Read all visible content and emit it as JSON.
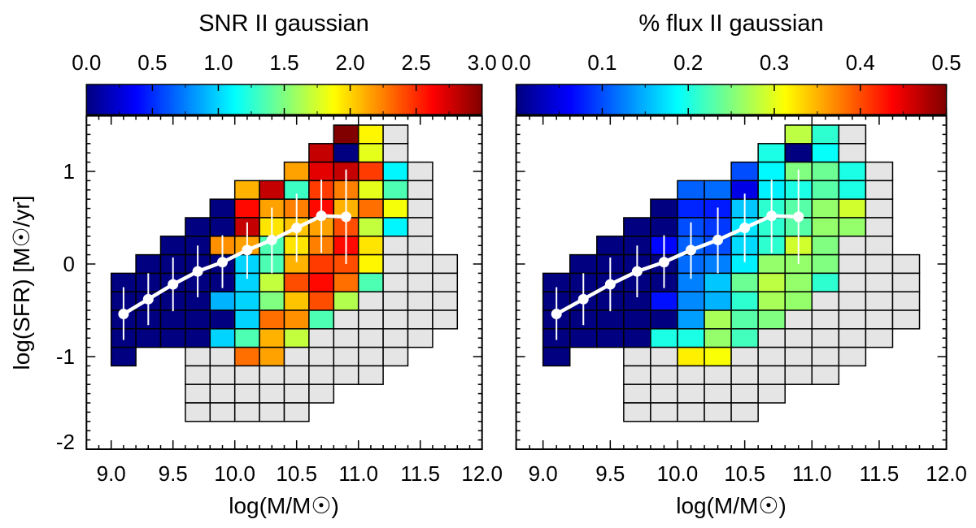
{
  "chart_data": [
    {
      "type": "heatmap",
      "title": "SNR II gaussian",
      "xlabel": "log(M/M☉)",
      "ylabel": "log(SFR) [M☉/yr]",
      "xlim": [
        8.8,
        12.0
      ],
      "ylim": [
        -2.0,
        1.6
      ],
      "xticks": [
        "9.0",
        "9.5",
        "10.0",
        "10.5",
        "11.0",
        "11.5",
        "12.0"
      ],
      "yticks": [
        "1",
        "0",
        "-1",
        "-2"
      ],
      "colormap": "jet",
      "no_data_color": "#e5e5e5",
      "colorbar": {
        "range": [
          0.0,
          3.0
        ],
        "ticks": [
          "0.0",
          "0.5",
          "1.0",
          "1.5",
          "2.0",
          "2.5",
          "3.0"
        ],
        "position": "top"
      },
      "bin_size": [
        0.2,
        0.2
      ],
      "rows": [
        {
          "y": 1.4,
          "x_start": 10.8,
          "values": [
            3.0,
            1.9,
            null
          ]
        },
        {
          "y": 1.2,
          "x_start": 10.6,
          "values": [
            2.8,
            0.0,
            1.8,
            null
          ]
        },
        {
          "y": 1.0,
          "x_start": 10.4,
          "values": [
            2.15,
            2.7,
            2.8,
            2.45,
            1.1,
            null
          ]
        },
        {
          "y": 0.8,
          "x_start": 10.0,
          "values": [
            2.1,
            2.8,
            1.3,
            2.45,
            2.25,
            1.8,
            1.35,
            null
          ]
        },
        {
          "y": 0.6,
          "x_start": 9.8,
          "values": [
            0.0,
            2.6,
            2.15,
            2.25,
            2.6,
            2.1,
            2.3,
            1.85,
            null
          ]
        },
        {
          "y": 0.4,
          "x_start": 9.6,
          "values": [
            0.0,
            0.0,
            2.8,
            1.95,
            2.05,
            2.15,
            2.4,
            1.7,
            1.1,
            null
          ]
        },
        {
          "y": 0.2,
          "x_start": 9.4,
          "values": [
            0.0,
            0.0,
            2.2,
            2.15,
            1.35,
            1.95,
            2.25,
            2.6,
            1.95,
            null,
            null
          ]
        },
        {
          "y": 0.0,
          "x_start": 9.2,
          "values": [
            0.0,
            0.0,
            0.0,
            0.0,
            1.0,
            1.35,
            2.1,
            2.45,
            2.4,
            1.9,
            null,
            null,
            null
          ]
        },
        {
          "y": -0.2,
          "x_start": 9.0,
          "values": [
            0.0,
            0.0,
            0.0,
            0.0,
            0.0,
            1.0,
            1.7,
            2.4,
            2.6,
            2.3,
            1.35,
            null,
            null,
            null
          ]
        },
        {
          "y": -0.4,
          "x_start": 9.0,
          "values": [
            0.0,
            0.0,
            0.0,
            0.0,
            0.9,
            1.0,
            1.5,
            2.05,
            2.4,
            1.65,
            null,
            null,
            null,
            null
          ]
        },
        {
          "y": -0.6,
          "x_start": 9.0,
          "values": [
            0.0,
            0.0,
            0.0,
            0.0,
            0.0,
            1.0,
            2.3,
            2.2,
            1.35,
            null,
            null,
            null,
            null,
            null
          ]
        },
        {
          "y": -0.8,
          "x_start": 9.0,
          "values": [
            0.0,
            0.0,
            0.0,
            0.0,
            1.0,
            1.35,
            2.1,
            1.7,
            null,
            null,
            null,
            null,
            null
          ]
        },
        {
          "y": -1.0,
          "x_start": 9.0,
          "values": [
            0.0
          ]
        },
        {
          "y": -1.0,
          "x_start": 9.6,
          "values": [
            null,
            null,
            2.3,
            2.15,
            null,
            null,
            null,
            null,
            null
          ]
        },
        {
          "y": -1.2,
          "x_start": 9.6,
          "values": [
            null,
            null,
            null,
            null,
            null,
            null,
            null,
            null
          ]
        },
        {
          "y": -1.4,
          "x_start": 9.6,
          "values": [
            null,
            null,
            null,
            null,
            null,
            null
          ]
        },
        {
          "y": -1.6,
          "x_start": 9.6,
          "values": [
            null,
            null,
            null,
            null,
            null
          ]
        }
      ],
      "median_line": {
        "color": "#ffffff",
        "x": [
          9.1,
          9.3,
          9.5,
          9.7,
          9.9,
          10.1,
          10.3,
          10.5,
          10.7,
          10.9
        ],
        "y": [
          -0.54,
          -0.38,
          -0.22,
          -0.08,
          0.02,
          0.15,
          0.26,
          0.39,
          0.52,
          0.51
        ],
        "y_low": [
          -0.82,
          -0.66,
          -0.51,
          -0.36,
          -0.26,
          -0.16,
          -0.1,
          0.02,
          0.12,
          0.0
        ],
        "y_high": [
          -0.25,
          -0.1,
          0.07,
          0.2,
          0.31,
          0.45,
          0.61,
          0.76,
          0.91,
          1.02
        ]
      }
    },
    {
      "type": "heatmap",
      "title": "% flux II gaussian",
      "xlabel": "log(M/M☉)",
      "xlim": [
        8.8,
        12.0
      ],
      "ylim": [
        -2.0,
        1.6
      ],
      "xticks": [
        "9.0",
        "9.5",
        "10.0",
        "10.5",
        "11.0",
        "11.5",
        "12.0"
      ],
      "colormap": "jet",
      "no_data_color": "#e5e5e5",
      "colorbar": {
        "range": [
          0.0,
          0.5
        ],
        "ticks": [
          "0.0",
          "0.1",
          "0.2",
          "0.3",
          "0.4",
          "0.5"
        ],
        "position": "top"
      },
      "bin_size": [
        0.2,
        0.2
      ],
      "rows": [
        {
          "y": 1.4,
          "x_start": 10.8,
          "values": [
            0.28,
            0.21,
            null
          ]
        },
        {
          "y": 1.2,
          "x_start": 10.6,
          "values": [
            0.2,
            0.0,
            0.19,
            null
          ]
        },
        {
          "y": 1.0,
          "x_start": 10.4,
          "values": [
            0.1,
            0.185,
            0.25,
            0.24,
            0.2,
            null
          ]
        },
        {
          "y": 0.8,
          "x_start": 10.0,
          "values": [
            0.11,
            0.115,
            0.05,
            0.18,
            0.2,
            0.23,
            0.2,
            null
          ]
        },
        {
          "y": 0.6,
          "x_start": 9.8,
          "values": [
            0.0,
            0.08,
            0.075,
            0.16,
            0.21,
            0.23,
            0.26,
            0.29,
            null
          ]
        },
        {
          "y": 0.4,
          "x_start": 9.6,
          "values": [
            0.0,
            0.0,
            0.1,
            0.09,
            0.175,
            0.21,
            0.23,
            0.26,
            0.26,
            null
          ]
        },
        {
          "y": 0.2,
          "x_start": 9.4,
          "values": [
            0.0,
            0.0,
            0.065,
            0.11,
            0.1,
            0.17,
            0.21,
            0.29,
            0.25,
            null,
            null
          ]
        },
        {
          "y": 0.0,
          "x_start": 9.2,
          "values": [
            0.0,
            0.0,
            0.0,
            0.0,
            0.115,
            0.125,
            0.18,
            0.26,
            0.26,
            0.25,
            null,
            null,
            null
          ]
        },
        {
          "y": -0.2,
          "x_start": 9.0,
          "values": [
            0.0,
            0.0,
            0.0,
            0.0,
            0.0,
            0.125,
            0.16,
            0.24,
            0.28,
            0.26,
            0.21,
            null,
            null,
            null
          ]
        },
        {
          "y": -0.4,
          "x_start": 9.0,
          "values": [
            0.0,
            0.0,
            0.0,
            0.0,
            0.07,
            0.13,
            0.15,
            0.21,
            0.27,
            0.26,
            null,
            null,
            null,
            null
          ]
        },
        {
          "y": -0.6,
          "x_start": 9.0,
          "values": [
            0.0,
            0.0,
            0.0,
            0.0,
            0.0,
            0.14,
            0.27,
            0.23,
            0.25,
            null,
            null,
            null,
            null,
            null
          ]
        },
        {
          "y": -0.8,
          "x_start": 9.0,
          "values": [
            0.0,
            0.0,
            0.0,
            0.0,
            0.2,
            0.2,
            0.26,
            0.22,
            null,
            null,
            null,
            null,
            null
          ]
        },
        {
          "y": -1.0,
          "x_start": 9.0,
          "values": [
            0.0
          ]
        },
        {
          "y": -1.0,
          "x_start": 9.6,
          "values": [
            null,
            null,
            0.32,
            0.31,
            null,
            null,
            null,
            null,
            null
          ]
        },
        {
          "y": -1.2,
          "x_start": 9.6,
          "values": [
            null,
            null,
            null,
            null,
            null,
            null,
            null,
            null
          ]
        },
        {
          "y": -1.4,
          "x_start": 9.6,
          "values": [
            null,
            null,
            null,
            null,
            null,
            null
          ]
        },
        {
          "y": -1.6,
          "x_start": 9.6,
          "values": [
            null,
            null,
            null,
            null,
            null
          ]
        }
      ],
      "median_line": {
        "color": "#ffffff",
        "x": [
          9.1,
          9.3,
          9.5,
          9.7,
          9.9,
          10.1,
          10.3,
          10.5,
          10.7,
          10.9
        ],
        "y": [
          -0.54,
          -0.38,
          -0.22,
          -0.08,
          0.02,
          0.15,
          0.26,
          0.39,
          0.52,
          0.51
        ],
        "y_low": [
          -0.82,
          -0.66,
          -0.51,
          -0.36,
          -0.26,
          -0.16,
          -0.1,
          0.02,
          0.12,
          0.0
        ],
        "y_high": [
          -0.25,
          -0.1,
          0.07,
          0.2,
          0.31,
          0.45,
          0.61,
          0.76,
          0.91,
          1.02
        ]
      }
    }
  ]
}
